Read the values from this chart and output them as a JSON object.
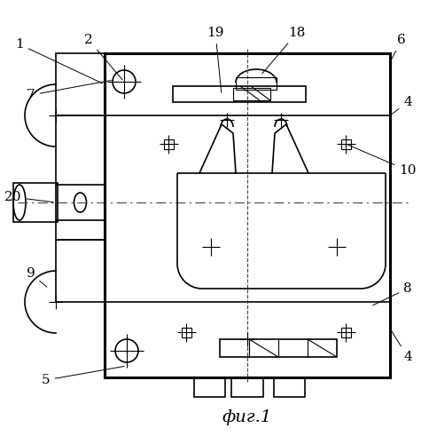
{
  "bg_color": "#ffffff",
  "line_color": "#000000",
  "title": "фиг.1",
  "lw_main": 2.0,
  "lw_thin": 0.8,
  "lw_med": 1.2
}
